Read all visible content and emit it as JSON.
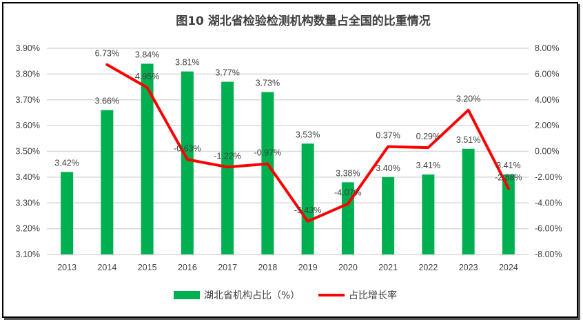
{
  "chart_data": {
    "type": "bar+line",
    "title": "图10  湖北省检验检测机构数量占全国的比重情况",
    "categories": [
      "2013",
      "2014",
      "2015",
      "2016",
      "2017",
      "2018",
      "2019",
      "2020",
      "2021",
      "2022",
      "2023",
      "2024"
    ],
    "series": [
      {
        "name": "湖北省机构占比（%）",
        "type": "bar",
        "axis": "left",
        "color": "#00B050",
        "values": [
          3.42,
          3.66,
          3.84,
          3.81,
          3.77,
          3.73,
          3.53,
          3.38,
          3.4,
          3.41,
          3.51,
          3.41
        ],
        "labels": [
          "3.42%",
          "3.66%",
          "3.84%",
          "3.81%",
          "3.77%",
          "3.73%",
          "3.53%",
          "3.38%",
          "3.40%",
          "3.41%",
          "3.51%",
          "3.41%"
        ]
      },
      {
        "name": "占比增长率",
        "type": "line",
        "axis": "right",
        "color": "#FF0000",
        "values": [
          null,
          6.73,
          4.95,
          -0.63,
          -1.22,
          -0.97,
          -5.43,
          -4.07,
          0.37,
          0.29,
          3.2,
          -2.88
        ],
        "labels": [
          "",
          "6.73%",
          "4.95%",
          "-0.63%",
          "-1.22%",
          "-0.97%",
          "-5.43%",
          "-4.07%",
          "0.37%",
          "0.29%",
          "3.20%",
          "-2.88%"
        ]
      }
    ],
    "left_axis": {
      "min": 3.1,
      "max": 3.9,
      "ticks": [
        "3.10%",
        "3.20%",
        "3.30%",
        "3.40%",
        "3.50%",
        "3.60%",
        "3.70%",
        "3.80%",
        "3.90%"
      ]
    },
    "right_axis": {
      "min": -8,
      "max": 8,
      "ticks": [
        "-8.00%",
        "-6.00%",
        "-4.00%",
        "-2.00%",
        "0.00%",
        "2.00%",
        "4.00%",
        "6.00%",
        "8.00%"
      ]
    },
    "grid": true,
    "legend": "bottom"
  }
}
